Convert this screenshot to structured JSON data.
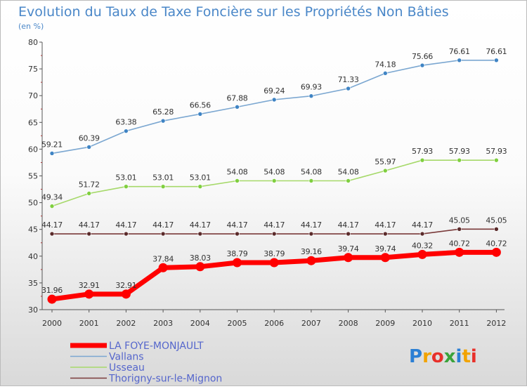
{
  "chart_data": {
    "type": "line",
    "title": "Evolution du Taux de Taxe Foncière sur les Propriétés Non Bâties",
    "subtitle": "(en %)",
    "x": [
      "2000",
      "2001",
      "2002",
      "2003",
      "2004",
      "2005",
      "2006",
      "2007",
      "2008",
      "2009",
      "2010",
      "2011",
      "2012"
    ],
    "ylim": [
      30,
      80
    ],
    "yticks": [
      30,
      35,
      40,
      45,
      50,
      55,
      60,
      65,
      70,
      75,
      80
    ],
    "grid": false,
    "legend_position": "bottom-left",
    "series": [
      {
        "name": "Vallans",
        "color": "#7ba7d1",
        "marker_color": "#3f84c4",
        "values": [
          59.21,
          60.39,
          63.38,
          65.28,
          66.56,
          67.88,
          69.24,
          69.93,
          71.33,
          74.18,
          75.66,
          76.61,
          76.61
        ],
        "labels": [
          "59.21",
          "60.39",
          "63.38",
          "65.28",
          "66.56",
          "67.88",
          "69.24",
          "69.93",
          "71.33",
          "74.18",
          "75.66",
          "76.61",
          "76.61"
        ]
      },
      {
        "name": "Usseau",
        "color": "#a6d96a",
        "marker_color": "#7fcf3f",
        "values": [
          49.34,
          51.72,
          53.01,
          53.01,
          53.01,
          54.08,
          54.08,
          54.08,
          54.08,
          55.97,
          57.93,
          57.93,
          57.93
        ],
        "labels": [
          "49.34",
          "51.72",
          "53.01",
          "53.01",
          "53.01",
          "54.08",
          "54.08",
          "54.08",
          "54.08",
          "55.97",
          "57.93",
          "57.93",
          "57.93"
        ]
      },
      {
        "name": "Thorigny-sur-le-Mignon",
        "color": "#7a3a3a",
        "marker_color": "#5a2a2a",
        "values": [
          44.17,
          44.17,
          44.17,
          44.17,
          44.17,
          44.17,
          44.17,
          44.17,
          44.17,
          44.17,
          44.17,
          45.05,
          45.05
        ],
        "labels": [
          "44.17",
          "44.17",
          "44.17",
          "44.17",
          "44.17",
          "44.17",
          "44.17",
          "44.17",
          "44.17",
          "44.17",
          "44.17",
          "45.05",
          "45.05"
        ]
      },
      {
        "name": "LA FOYE-MONJAULT",
        "color": "#ff0000",
        "marker_color": "#ff0000",
        "highlight": true,
        "values": [
          31.96,
          32.91,
          32.91,
          37.84,
          38.03,
          38.79,
          38.79,
          39.16,
          39.74,
          39.74,
          40.32,
          40.72,
          40.72
        ],
        "labels": [
          "31.96",
          "32.91",
          "32.91",
          "37.84",
          "38.03",
          "38.79",
          "38.79",
          "39.16",
          "39.74",
          "39.74",
          "40.32",
          "40.72",
          "40.72"
        ]
      }
    ],
    "legend_order": [
      "LA FOYE-MONJAULT",
      "Vallans",
      "Usseau",
      "Thorigny-sur-le-Mignon"
    ]
  },
  "colors": {
    "title": "#4a87c8",
    "legend_text": "#5566cc",
    "axis": "#555555",
    "tick_text": "#333333",
    "background_top": "#ffffff",
    "background_bottom": "#dcdcdc"
  },
  "logo": {
    "text": "Proxiti"
  }
}
